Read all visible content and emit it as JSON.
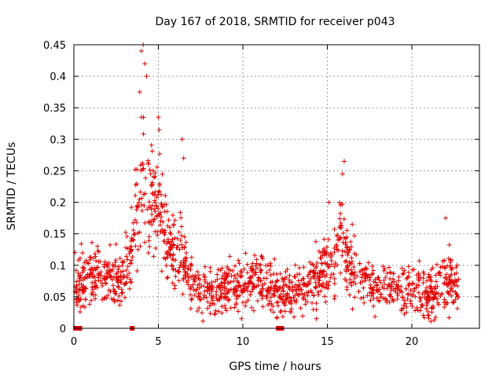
{
  "chart_data": {
    "type": "scatter",
    "title": "Day 167 of 2018, SRMTID for receiver p043",
    "xlabel": "GPS time / hours",
    "ylabel": "SRMTID / TECUs",
    "xlim": [
      0,
      24
    ],
    "ylim": [
      0,
      0.45
    ],
    "x_ticks": [
      0,
      5,
      10,
      15,
      20
    ],
    "y_ticks": [
      0,
      0.05,
      0.1,
      0.15,
      0.2,
      0.25,
      0.3,
      0.35,
      0.4,
      0.45
    ],
    "x_tick_labels": [
      "0",
      "5",
      "10",
      "15",
      "20"
    ],
    "y_tick_labels": [
      "0",
      "0.05",
      "0.1",
      "0.15",
      "0.2",
      "0.25",
      "0.3",
      "0.35",
      "0.4",
      "0.45"
    ],
    "grid": true,
    "marker": "+",
    "color": "#e00000",
    "series": [
      {
        "name": "SRMTID",
        "envelope_x": [
          0,
          0.5,
          1,
          1.5,
          2,
          2.5,
          3,
          3.3,
          3.6,
          3.9,
          4.1,
          4.3,
          4.6,
          4.9,
          5.1,
          5.4,
          5.7,
          6.0,
          6.3,
          6.6,
          6.9,
          7.2,
          7.6,
          8,
          8.5,
          9,
          9.4,
          9.8,
          10.2,
          10.6,
          11,
          11.5,
          12,
          12.5,
          13,
          13.5,
          14,
          14.5,
          14.8,
          15.1,
          15.4,
          15.7,
          15.9,
          16.1,
          16.4,
          16.8,
          17.3,
          17.8,
          18.3,
          18.8,
          19.3,
          19.8,
          20.2,
          20.6,
          21,
          21.5,
          21.9,
          22.3,
          22.8
        ],
        "envelope_mean": [
          0.075,
          0.08,
          0.082,
          0.083,
          0.078,
          0.072,
          0.085,
          0.11,
          0.17,
          0.2,
          0.23,
          0.22,
          0.2,
          0.19,
          0.2,
          0.16,
          0.13,
          0.12,
          0.13,
          0.1,
          0.08,
          0.07,
          0.065,
          0.06,
          0.058,
          0.065,
          0.075,
          0.07,
          0.068,
          0.075,
          0.07,
          0.065,
          0.058,
          0.055,
          0.06,
          0.065,
          0.07,
          0.085,
          0.095,
          0.09,
          0.1,
          0.13,
          0.15,
          0.12,
          0.095,
          0.08,
          0.075,
          0.07,
          0.065,
          0.062,
          0.06,
          0.065,
          0.06,
          0.058,
          0.055,
          0.06,
          0.075,
          0.07,
          0.065
        ],
        "peaks": [
          {
            "x": 4.0,
            "y": 0.44
          },
          {
            "x": 4.1,
            "y": 0.45
          },
          {
            "x": 4.2,
            "y": 0.42
          },
          {
            "x": 4.3,
            "y": 0.4
          },
          {
            "x": 4.0,
            "y": 0.335
          },
          {
            "x": 3.9,
            "y": 0.375
          },
          {
            "x": 5.0,
            "y": 0.335
          },
          {
            "x": 5.05,
            "y": 0.315
          },
          {
            "x": 6.4,
            "y": 0.3
          },
          {
            "x": 6.5,
            "y": 0.27
          },
          {
            "x": 16.0,
            "y": 0.265
          },
          {
            "x": 15.9,
            "y": 0.245
          },
          {
            "x": 15.1,
            "y": 0.2
          },
          {
            "x": 22.0,
            "y": 0.175
          }
        ],
        "zero_points_x": [
          0.1,
          0.2,
          0.35,
          3.45,
          12.1,
          12.2,
          12.3
        ]
      }
    ]
  }
}
